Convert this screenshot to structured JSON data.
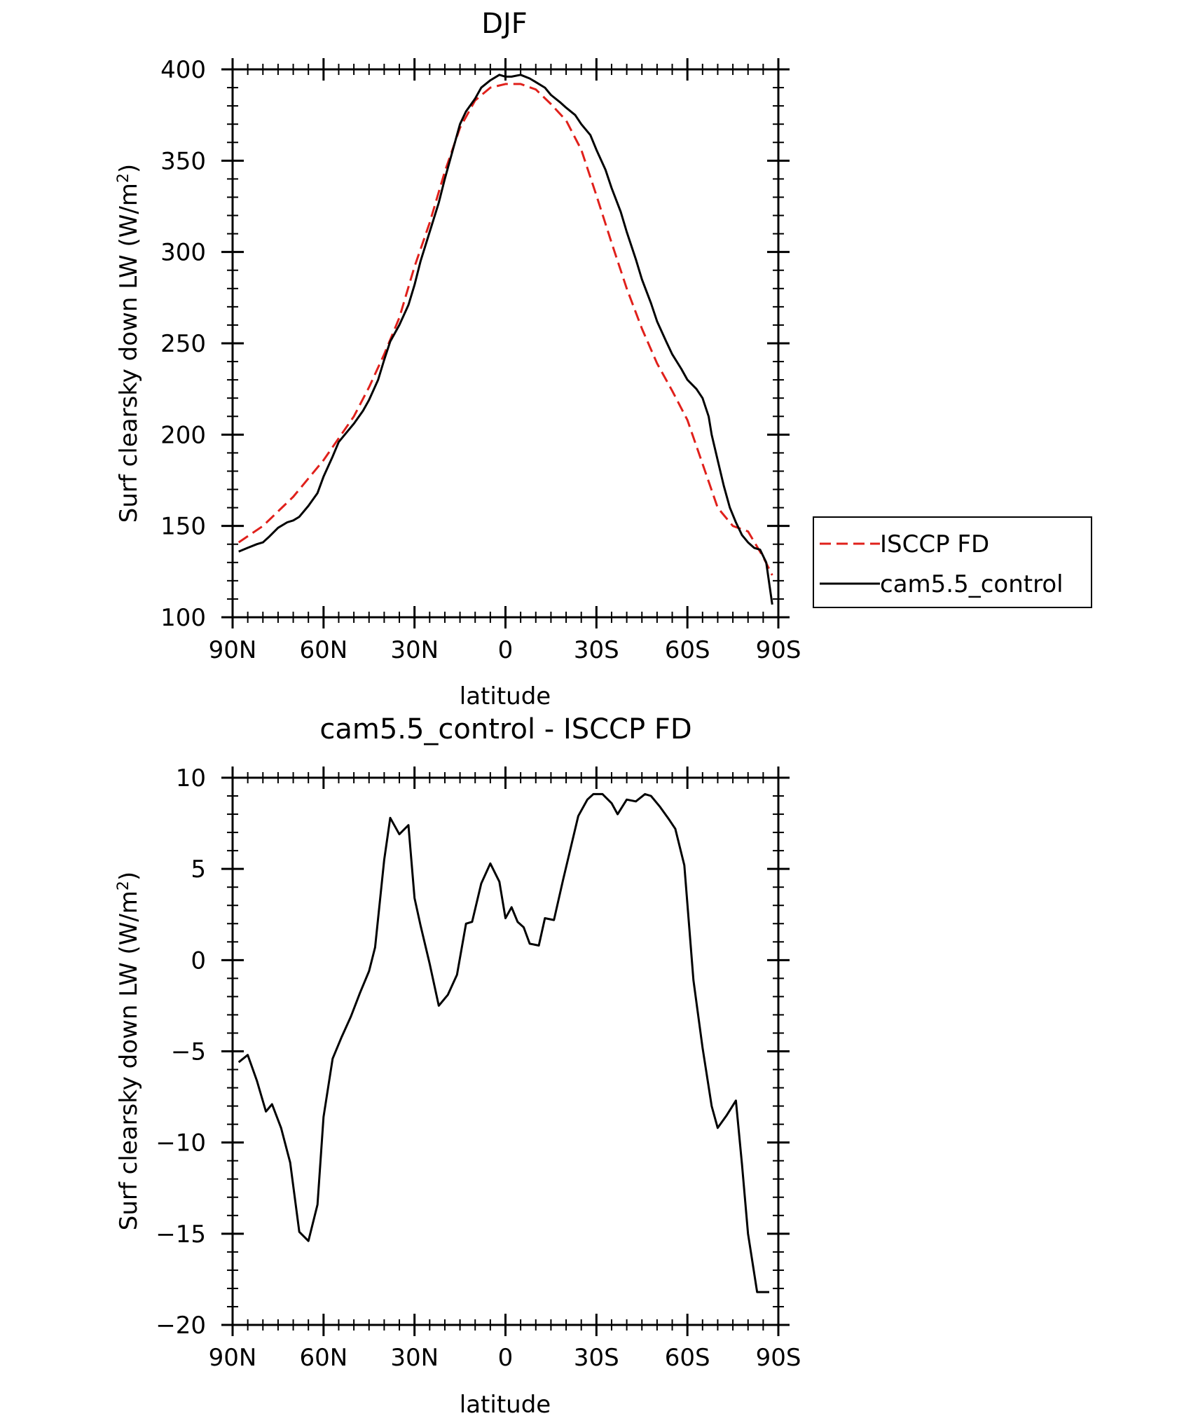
{
  "chart_data": [
    {
      "type": "line",
      "title": "DJF",
      "xlabel": "latitude",
      "ylabel_main": "Surf clearsky down LW (W/m",
      "ylabel_sup": "2",
      "ylabel_close": ")",
      "xlim": [
        90,
        -90
      ],
      "ylim": [
        100,
        400
      ],
      "x_ticks": [
        {
          "value": 90,
          "label": "90N"
        },
        {
          "value": 60,
          "label": "60N"
        },
        {
          "value": 30,
          "label": "30N"
        },
        {
          "value": 0,
          "label": "0"
        },
        {
          "value": -30,
          "label": "30S"
        },
        {
          "value": -60,
          "label": "60S"
        },
        {
          "value": -90,
          "label": "90S"
        }
      ],
      "y_ticks": [
        {
          "value": 100,
          "label": "100"
        },
        {
          "value": 150,
          "label": "150"
        },
        {
          "value": 200,
          "label": "200"
        },
        {
          "value": 250,
          "label": "250"
        },
        {
          "value": 300,
          "label": "300"
        },
        {
          "value": 350,
          "label": "350"
        },
        {
          "value": 400,
          "label": "400"
        }
      ],
      "legend_position": "right",
      "series": [
        {
          "name": "ISCCP FD",
          "color": "#e0201b",
          "dash": "dashed",
          "x": [
            88,
            80,
            70,
            60,
            55,
            50,
            45,
            40,
            35,
            30,
            25,
            20,
            15,
            10,
            5,
            0,
            -5,
            -10,
            -15,
            -20,
            -25,
            -30,
            -35,
            -40,
            -45,
            -50,
            -55,
            -60,
            -65,
            -70,
            -75,
            -80,
            -85,
            -88
          ],
          "y": [
            141,
            150,
            166,
            186,
            198,
            210,
            226,
            244,
            264,
            292,
            316,
            344,
            368,
            383,
            390,
            392,
            392,
            389,
            381,
            372,
            356,
            331,
            305,
            280,
            258,
            239,
            224,
            208,
            184,
            160,
            150,
            147,
            133,
            123
          ]
        },
        {
          "name": "cam5.5_control",
          "color": "#000000",
          "dash": "solid",
          "x": [
            88,
            85,
            82,
            80,
            78,
            75,
            72,
            70,
            68,
            65,
            62,
            60,
            57,
            55,
            52,
            50,
            47,
            45,
            42,
            40,
            38,
            35,
            32,
            30,
            28,
            25,
            22,
            20,
            17,
            15,
            13,
            10,
            8,
            5,
            2,
            0,
            -2,
            -5,
            -8,
            -10,
            -13,
            -15,
            -18,
            -20,
            -23,
            -25,
            -28,
            -30,
            -33,
            -35,
            -38,
            -40,
            -43,
            -45,
            -48,
            -50,
            -53,
            -55,
            -58,
            -60,
            -63,
            -65,
            -67,
            -68,
            -70,
            -72,
            -74,
            -76,
            -78,
            -80,
            -82,
            -84,
            -86,
            -88
          ],
          "y": [
            136,
            138,
            140,
            141,
            144,
            149,
            152,
            153,
            155,
            161,
            168,
            177,
            188,
            196,
            202,
            206,
            213,
            219,
            230,
            241,
            251,
            260,
            271,
            282,
            295,
            311,
            327,
            340,
            358,
            370,
            377,
            384,
            390,
            394,
            397,
            396,
            396,
            397,
            395,
            393,
            390,
            386,
            382,
            379,
            375,
            370,
            364,
            356,
            345,
            335,
            322,
            311,
            296,
            285,
            272,
            262,
            251,
            244,
            236,
            230,
            225,
            220,
            210,
            200,
            186,
            172,
            160,
            152,
            145,
            141,
            138,
            137,
            130,
            107
          ]
        }
      ]
    },
    {
      "type": "line",
      "title": "cam5.5_control - ISCCP FD",
      "xlabel": "latitude",
      "ylabel_main": "Surf clearsky down LW (W/m",
      "ylabel_sup": "2",
      "ylabel_close": ")",
      "xlim": [
        90,
        -90
      ],
      "ylim": [
        -20,
        10
      ],
      "x_ticks": [
        {
          "value": 90,
          "label": "90N"
        },
        {
          "value": 60,
          "label": "60N"
        },
        {
          "value": 30,
          "label": "30N"
        },
        {
          "value": 0,
          "label": "0"
        },
        {
          "value": -30,
          "label": "30S"
        },
        {
          "value": -60,
          "label": "60S"
        },
        {
          "value": -90,
          "label": "90S"
        }
      ],
      "y_ticks": [
        {
          "value": 10,
          "label": "10"
        },
        {
          "value": 5,
          "label": "5"
        },
        {
          "value": 0,
          "label": "0"
        },
        {
          "value": -5,
          "label": "−5"
        },
        {
          "value": -10,
          "label": "−10"
        },
        {
          "value": -15,
          "label": "−15"
        },
        {
          "value": -20,
          "label": "−20"
        }
      ],
      "series": [
        {
          "color": "#000000",
          "dash": "solid",
          "x": [
            88,
            85,
            82,
            79,
            77,
            74,
            71,
            68,
            65,
            62,
            60,
            57,
            54,
            51,
            48,
            45,
            43,
            40,
            38,
            35,
            32,
            30,
            28,
            25,
            22,
            19,
            16,
            13,
            11,
            8,
            5,
            2,
            0,
            -2,
            -4,
            -6,
            -8,
            -11,
            -13,
            -16,
            -19,
            -21,
            -24,
            -27,
            -29,
            -32,
            -35,
            -37,
            -40,
            -43,
            -46,
            -48,
            -51,
            -54,
            -56,
            -59,
            -62,
            -65,
            -68,
            -70,
            -73,
            -76,
            -78,
            -80,
            -83,
            -85,
            -87
          ],
          "y": [
            -5.6,
            -5.2,
            -6.6,
            -8.3,
            -7.9,
            -9.2,
            -11.1,
            -14.9,
            -15.4,
            -13.4,
            -8.6,
            -5.4,
            -4.2,
            -3.1,
            -1.8,
            -0.6,
            0.7,
            5.5,
            7.8,
            6.9,
            7.4,
            3.4,
            1.9,
            -0.2,
            -2.5,
            -1.9,
            -0.8,
            2.0,
            2.1,
            4.2,
            5.3,
            4.3,
            2.3,
            2.9,
            2.1,
            1.8,
            0.9,
            0.8,
            2.3,
            2.2,
            4.4,
            5.8,
            7.9,
            8.8,
            9.1,
            9.1,
            8.6,
            8.0,
            8.8,
            8.7,
            9.1,
            9.0,
            8.4,
            7.7,
            7.2,
            5.2,
            -1.1,
            -4.8,
            -8.0,
            -9.2,
            -8.5,
            -7.7,
            -11.2,
            -15.0,
            -18.2,
            -18.2,
            -18.2
          ]
        }
      ]
    }
  ]
}
